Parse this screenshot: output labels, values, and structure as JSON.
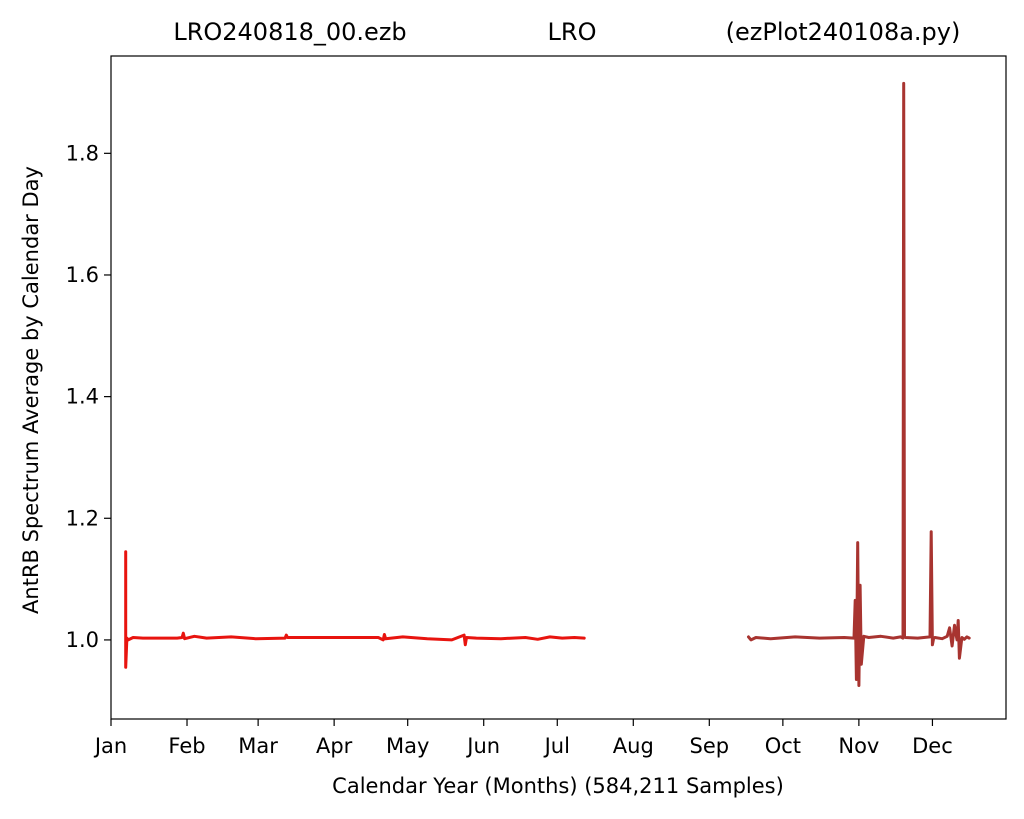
{
  "chart_data": {
    "type": "line",
    "title_parts": {
      "left": "LRO240818_00.ezb",
      "center": "LRO",
      "right": "(ezPlot240108a.py)"
    },
    "xlabel": "Calendar Year (Months) (584,211 Samples)",
    "ylabel": "AntRB Spectrum Average by Calendar Day",
    "x_unit": "day_of_year",
    "xlim": [
      1,
      366
    ],
    "ylim": [
      0.87,
      1.96
    ],
    "x_ticks": [
      {
        "label": "Jan",
        "day": 1
      },
      {
        "label": "Feb",
        "day": 32
      },
      {
        "label": "Mar",
        "day": 61
      },
      {
        "label": "Apr",
        "day": 92
      },
      {
        "label": "May",
        "day": 122
      },
      {
        "label": "Jun",
        "day": 153
      },
      {
        "label": "Jul",
        "day": 183
      },
      {
        "label": "Aug",
        "day": 214
      },
      {
        "label": "Sep",
        "day": 245
      },
      {
        "label": "Oct",
        "day": 275
      },
      {
        "label": "Nov",
        "day": 306
      },
      {
        "label": "Dec",
        "day": 336
      }
    ],
    "y_ticks": [
      {
        "label": "1.0",
        "value": 1.0
      },
      {
        "label": "1.2",
        "value": 1.2
      },
      {
        "label": "1.4",
        "value": 1.4
      },
      {
        "label": "1.6",
        "value": 1.6
      },
      {
        "label": "1.8",
        "value": 1.8
      }
    ],
    "grid": false,
    "series": [
      {
        "color": "#e8140f",
        "x": [
          7,
          7,
          7,
          7.5,
          8,
          10,
          14,
          28,
          30,
          30.5,
          31,
          35,
          40,
          50,
          60,
          72,
          72.5,
          73,
          90,
          110,
          112,
          112.5,
          113,
          120,
          130,
          140,
          145,
          145.5,
          146,
          150,
          160,
          170,
          175,
          180,
          185,
          190,
          194
        ],
        "y": [
          1.0,
          1.145,
          0.955,
          1.003,
          1.0,
          1.004,
          1.003,
          1.003,
          1.004,
          1.011,
          1.002,
          1.006,
          1.003,
          1.005,
          1.002,
          1.003,
          1.008,
          1.004,
          1.004,
          1.004,
          1.0,
          1.009,
          1.002,
          1.005,
          1.002,
          1.0,
          1.008,
          0.992,
          1.004,
          1.003,
          1.002,
          1.004,
          1.001,
          1.005,
          1.003,
          1.004,
          1.003
        ]
      },
      {
        "color": "#a83430",
        "x": [
          261,
          262,
          264,
          270,
          280,
          290,
          300,
          304,
          304.5,
          305,
          305.5,
          306,
          306.5,
          307,
          308,
          310,
          315,
          320,
          323,
          324,
          324.3,
          324.6,
          325,
          330,
          335,
          335.5,
          336,
          336.5,
          337,
          340,
          342,
          343,
          344,
          345,
          346,
          346.5,
          347,
          348,
          349,
          350,
          351
        ],
        "y": [
          1.005,
          1.0,
          1.004,
          1.002,
          1.005,
          1.003,
          1.004,
          1.003,
          1.065,
          0.935,
          1.16,
          0.925,
          1.09,
          0.96,
          1.006,
          1.004,
          1.006,
          1.003,
          1.005,
          1.003,
          1.915,
          1.005,
          1.004,
          1.003,
          1.005,
          1.178,
          0.992,
          1.003,
          1.004,
          1.002,
          1.006,
          1.02,
          0.99,
          1.024,
          1.0,
          1.032,
          0.97,
          1.004,
          1.001,
          1.005,
          1.003
        ]
      }
    ]
  }
}
